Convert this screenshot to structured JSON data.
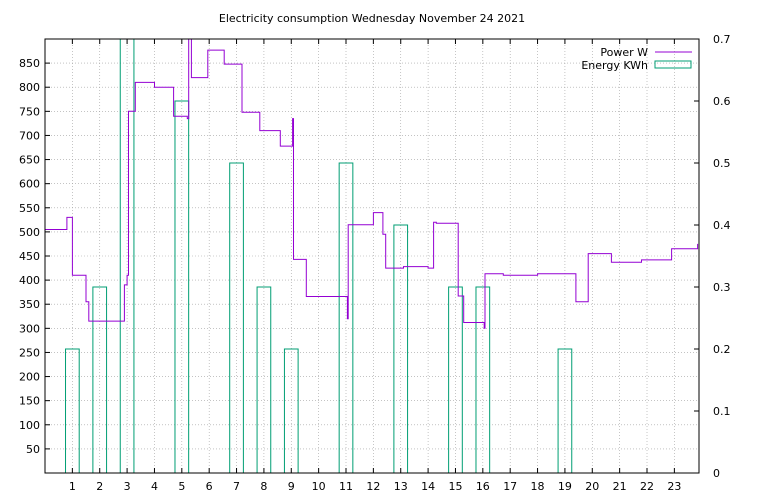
{
  "chart_data": {
    "type": "line",
    "title": "Electricity consumption Wednesday November 24 2021",
    "x_ticks": [
      1,
      2,
      3,
      4,
      5,
      6,
      7,
      8,
      9,
      10,
      11,
      12,
      13,
      14,
      15,
      16,
      17,
      18,
      19,
      20,
      21,
      22,
      23
    ],
    "y_ticks": [
      50,
      100,
      150,
      200,
      250,
      300,
      350,
      400,
      450,
      500,
      550,
      600,
      650,
      700,
      750,
      800,
      850
    ],
    "y2_ticks": [
      "0",
      "0.1",
      "0.2",
      "0.3",
      "0.4",
      "0.5",
      "0.6",
      "0.7"
    ],
    "xlim": [
      0,
      23.9
    ],
    "ylim": [
      0,
      900
    ],
    "y2lim": [
      0,
      0.7
    ],
    "grid": true,
    "legend_position": "top-right",
    "colors": {
      "power": "#9400d3",
      "energy": "#009e73"
    },
    "series": [
      {
        "name": "Power W",
        "type": "step",
        "axis": "y",
        "points": [
          [
            0.0,
            505
          ],
          [
            0.8,
            505
          ],
          [
            0.8,
            530
          ],
          [
            1.0,
            530
          ],
          [
            1.0,
            410
          ],
          [
            1.5,
            410
          ],
          [
            1.5,
            355
          ],
          [
            1.6,
            355
          ],
          [
            1.6,
            315
          ],
          [
            2.9,
            315
          ],
          [
            2.9,
            390
          ],
          [
            3.0,
            390
          ],
          [
            3.0,
            410
          ],
          [
            3.05,
            410
          ],
          [
            3.05,
            750
          ],
          [
            3.3,
            750
          ],
          [
            3.3,
            810
          ],
          [
            4.0,
            810
          ],
          [
            4.0,
            800
          ],
          [
            4.7,
            800
          ],
          [
            4.7,
            740
          ],
          [
            5.2,
            740
          ],
          [
            5.2,
            735
          ],
          [
            5.25,
            735
          ],
          [
            5.25,
            900
          ],
          [
            5.35,
            900
          ],
          [
            5.35,
            820
          ],
          [
            5.95,
            820
          ],
          [
            5.95,
            877
          ],
          [
            6.55,
            877
          ],
          [
            6.55,
            848
          ],
          [
            7.2,
            848
          ],
          [
            7.2,
            748
          ],
          [
            7.85,
            748
          ],
          [
            7.85,
            710
          ],
          [
            8.6,
            710
          ],
          [
            8.6,
            678
          ],
          [
            9.05,
            678
          ],
          [
            9.05,
            735
          ],
          [
            9.08,
            735
          ],
          [
            9.08,
            443
          ],
          [
            9.55,
            443
          ],
          [
            9.55,
            366
          ],
          [
            11.05,
            366
          ],
          [
            11.05,
            320
          ],
          [
            11.08,
            320
          ],
          [
            11.08,
            515
          ],
          [
            12.0,
            515
          ],
          [
            12.0,
            540
          ],
          [
            12.35,
            540
          ],
          [
            12.35,
            495
          ],
          [
            12.45,
            495
          ],
          [
            12.45,
            425
          ],
          [
            13.1,
            425
          ],
          [
            13.1,
            428
          ],
          [
            14.0,
            428
          ],
          [
            14.0,
            425
          ],
          [
            14.2,
            425
          ],
          [
            14.2,
            520
          ],
          [
            14.3,
            520
          ],
          [
            14.3,
            518
          ],
          [
            15.1,
            518
          ],
          [
            15.1,
            367
          ],
          [
            15.3,
            367
          ],
          [
            15.3,
            312
          ],
          [
            16.05,
            312
          ],
          [
            16.05,
            300
          ],
          [
            16.08,
            300
          ],
          [
            16.08,
            413
          ],
          [
            16.75,
            413
          ],
          [
            16.75,
            410
          ],
          [
            18.0,
            410
          ],
          [
            18.0,
            413
          ],
          [
            19.4,
            413
          ],
          [
            19.4,
            355
          ],
          [
            19.85,
            355
          ],
          [
            19.85,
            455
          ],
          [
            20.7,
            455
          ],
          [
            20.7,
            437
          ],
          [
            21.8,
            437
          ],
          [
            21.8,
            442
          ],
          [
            22.9,
            442
          ],
          [
            22.9,
            465
          ],
          [
            23.85,
            465
          ],
          [
            23.85,
            475
          ]
        ]
      },
      {
        "name": "Energy KWh",
        "type": "box",
        "axis": "y2",
        "box_width": 0.5,
        "x": [
          1,
          2,
          3,
          5,
          7,
          8,
          9,
          11,
          13,
          15,
          16,
          19
        ],
        "values": [
          0.2,
          0.3,
          0.7,
          0.6,
          0.5,
          0.3,
          0.2,
          0.5,
          0.4,
          0.3,
          0.3,
          0.2
        ]
      }
    ]
  }
}
